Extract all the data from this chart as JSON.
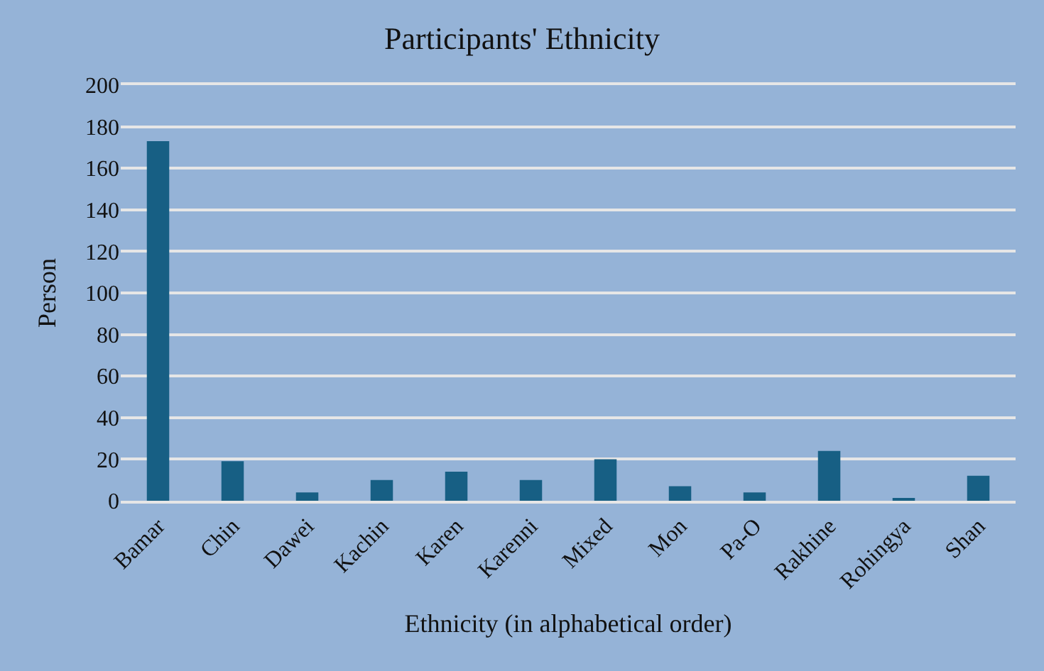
{
  "chart_data": {
    "type": "bar",
    "title": "Participants' Ethnicity",
    "xlabel": "Ethnicity (in alphabetical order)",
    "ylabel": "Person",
    "categories": [
      "Bamar",
      "Chin",
      "Dawei",
      "Kachin",
      "Karen",
      "Karenni",
      "Mixed",
      "Mon",
      "Pa-O",
      "Rakhine",
      "Rohingya",
      "Shan"
    ],
    "values": [
      173,
      19,
      4,
      10,
      14,
      10,
      20,
      7,
      4,
      24,
      1,
      12
    ],
    "color": "#175f84",
    "ylim": [
      0,
      200
    ],
    "yticks": [
      0,
      20,
      40,
      60,
      80,
      100,
      120,
      140,
      160,
      180,
      200
    ],
    "grid": "y"
  }
}
